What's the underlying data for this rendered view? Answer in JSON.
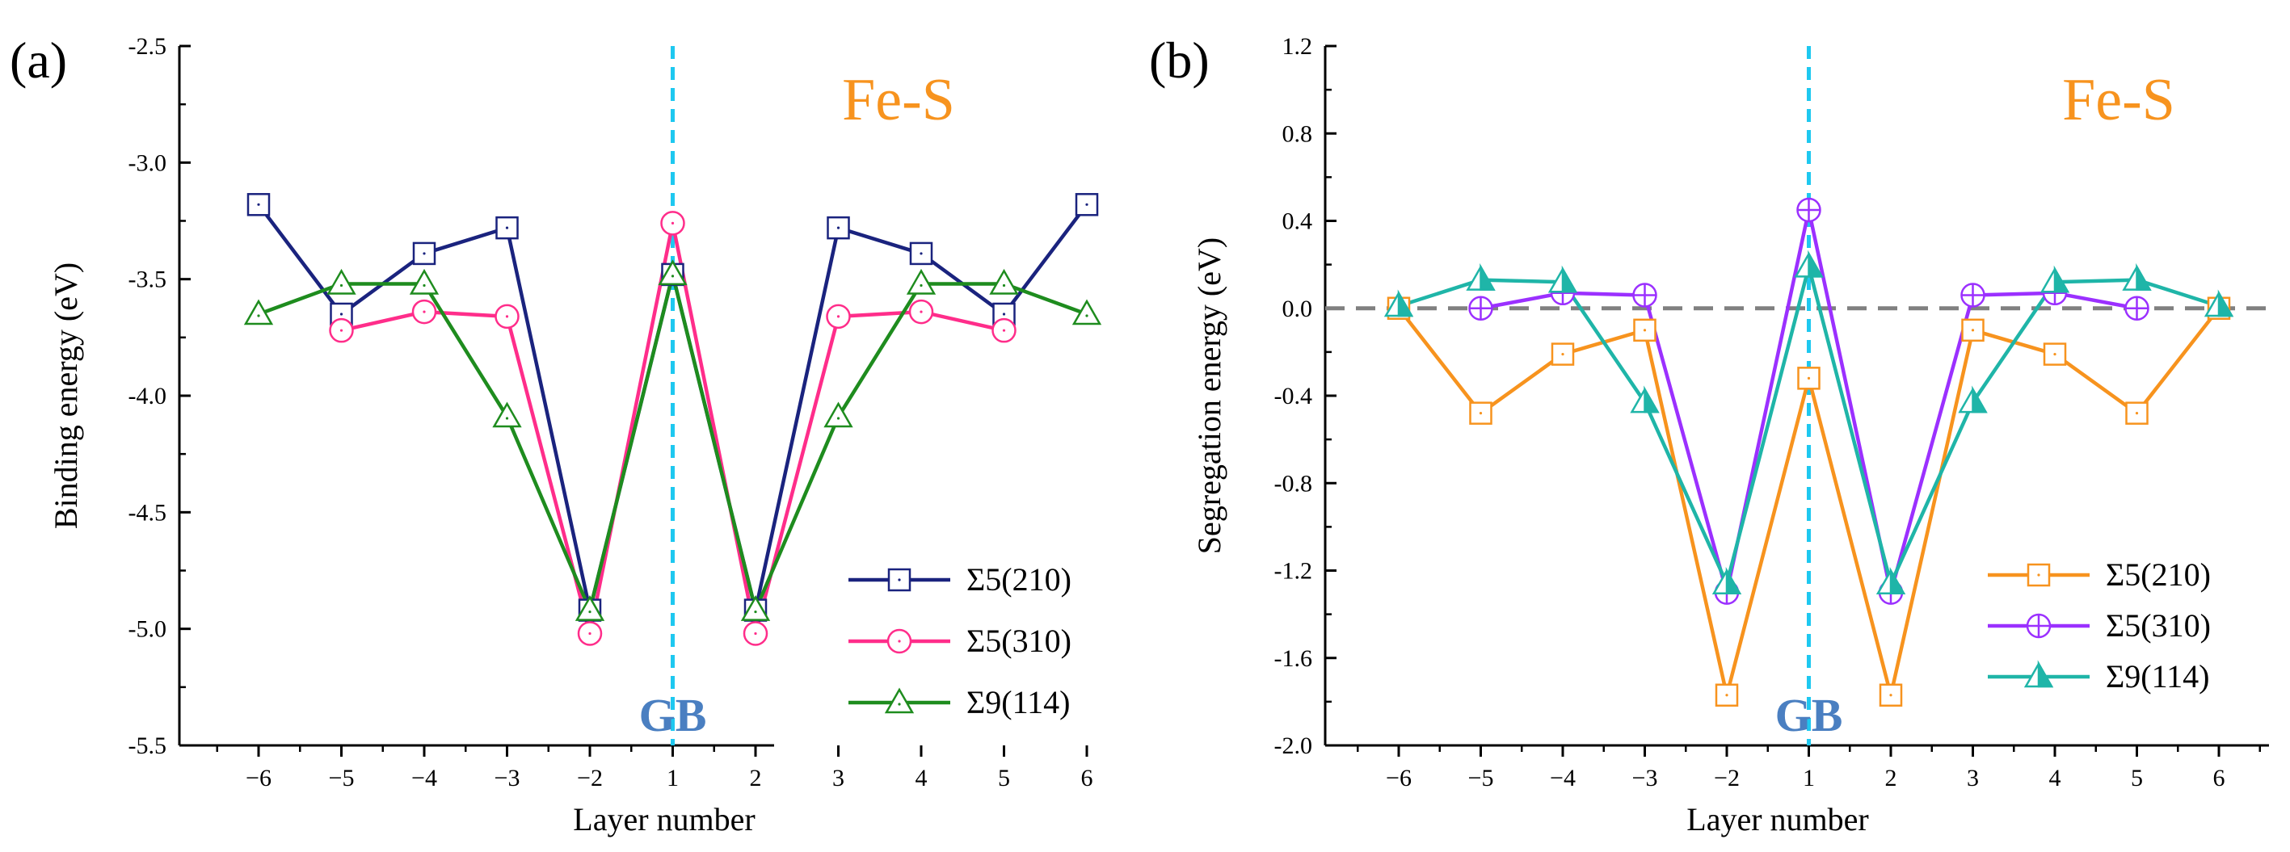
{
  "chart_data": [
    {
      "type": "line",
      "panel_label": "(a)",
      "ylabel": "Binding energy (eV)",
      "xlabel": "Layer number",
      "annotation": "Fe-S",
      "gb_label": "GB",
      "categories": [
        "−6",
        "−5",
        "−4",
        "−3",
        "−2",
        "1",
        "2",
        "3",
        "4",
        "5",
        "6"
      ],
      "ylim": [
        -5.5,
        -2.5
      ],
      "yticks": [
        "-2.5",
        "-3.0",
        "-3.5",
        "-4.0",
        "-4.5",
        "-5.0",
        "-5.5"
      ],
      "ytick_values": [
        -2.5,
        -3.0,
        -3.5,
        -4.0,
        -4.5,
        -5.0,
        -5.5
      ],
      "legend_position": "bottom-right",
      "reference_line": null,
      "series": [
        {
          "name": "Σ5(210)",
          "color": "#1a237e",
          "marker": "square-dot",
          "values": [
            -3.18,
            -3.65,
            -3.39,
            -3.28,
            -4.92,
            -3.48,
            -4.92,
            -3.28,
            -3.39,
            -3.65,
            -3.18
          ]
        },
        {
          "name": "Σ5(310)",
          "color": "#ff2d8a",
          "marker": "circle-dot",
          "values": [
            null,
            -3.72,
            -3.64,
            -3.66,
            -5.02,
            -3.26,
            -5.02,
            -3.66,
            -3.64,
            -3.72,
            null
          ]
        },
        {
          "name": "Σ9(114)",
          "color": "#1e8c1e",
          "marker": "triangle-dot",
          "values": [
            -3.65,
            -3.52,
            -3.52,
            -4.09,
            -4.92,
            -3.48,
            -4.92,
            -4.09,
            -3.52,
            -3.52,
            -3.65
          ]
        }
      ]
    },
    {
      "type": "line",
      "panel_label": "(b)",
      "ylabel": "Segregation energy (eV)",
      "xlabel": "Layer number",
      "annotation": "Fe-S",
      "gb_label": "GB",
      "categories": [
        "−6",
        "−5",
        "−4",
        "−3",
        "−2",
        "1",
        "2",
        "3",
        "4",
        "5",
        "6"
      ],
      "ylim": [
        -2.0,
        1.2
      ],
      "yticks": [
        "1.2",
        "0.8",
        "0.4",
        "0.0",
        "-0.4",
        "-0.8",
        "-1.2",
        "-1.6",
        "-2.0"
      ],
      "ytick_values": [
        1.2,
        0.8,
        0.4,
        0.0,
        -0.4,
        -0.8,
        -1.2,
        -1.6,
        -2.0
      ],
      "legend_position": "bottom-right",
      "reference_line": 0.0,
      "series": [
        {
          "name": "Σ5(210)",
          "color": "#f7931e",
          "marker": "square-dot",
          "values": [
            0.0,
            -0.48,
            -0.21,
            -0.1,
            -1.77,
            -0.32,
            -1.77,
            -0.1,
            -0.21,
            -0.48,
            0.0
          ]
        },
        {
          "name": "Σ5(310)",
          "color": "#9b30ff",
          "marker": "circle-plus",
          "values": [
            null,
            0.0,
            0.07,
            0.06,
            -1.3,
            0.45,
            -1.3,
            0.06,
            0.07,
            0.0,
            null
          ]
        },
        {
          "name": "Σ9(114)",
          "color": "#1fb5a8",
          "marker": "triangle-half",
          "values": [
            0.01,
            0.13,
            0.12,
            -0.43,
            -1.26,
            0.19,
            -1.26,
            -0.43,
            0.12,
            0.13,
            0.01
          ]
        }
      ]
    }
  ],
  "colors": {
    "axis": "#000000",
    "gb_line": "#1ec8f0",
    "gb_text": "#4a7fc1",
    "annotation": "#f7931e",
    "reference": "#808080"
  }
}
